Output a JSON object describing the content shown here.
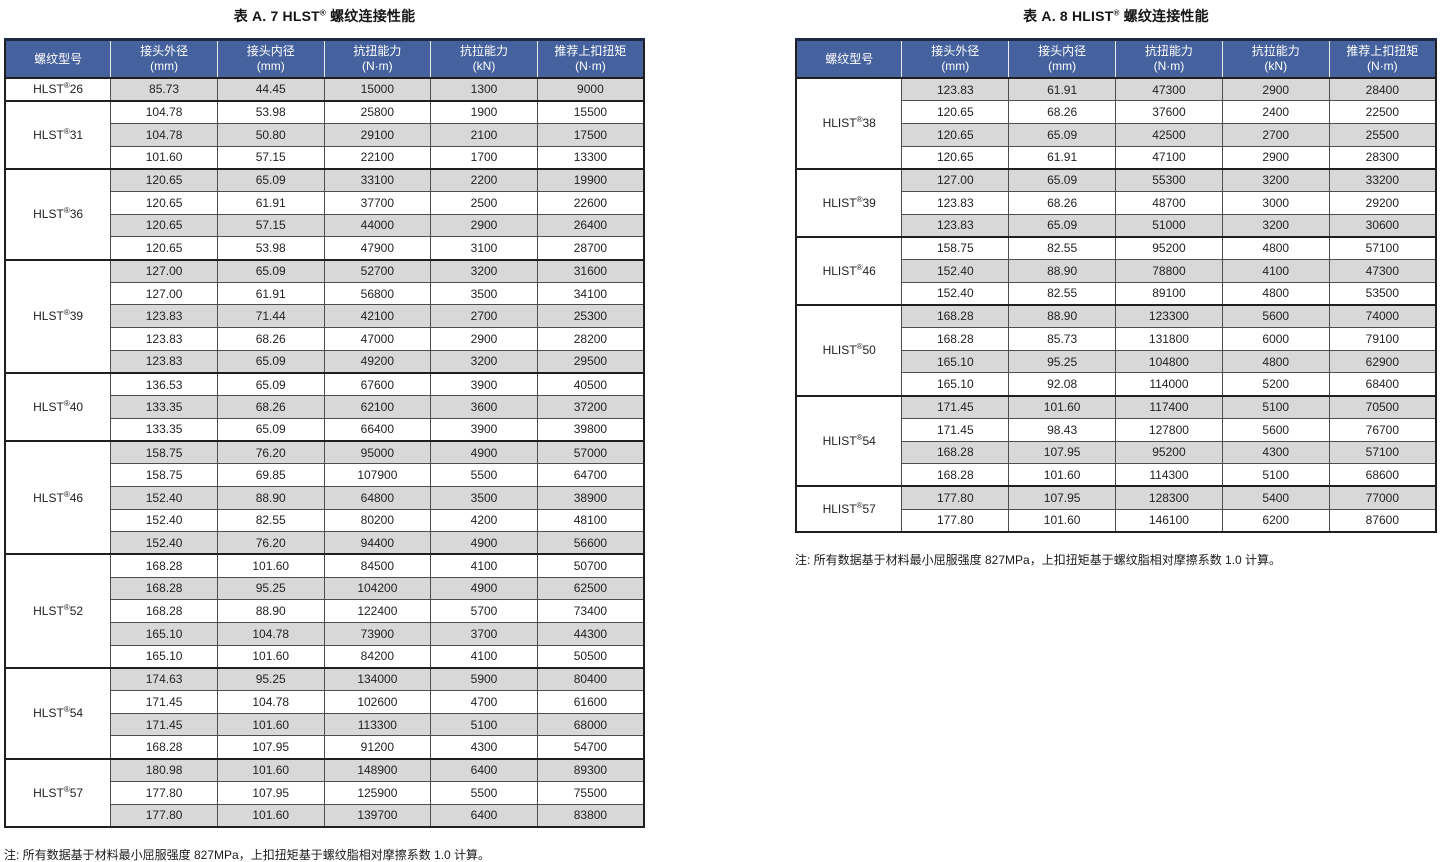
{
  "colors": {
    "header_bg": "#45619e",
    "header_border": "#1d2945",
    "header_separator": "#e9ecf4",
    "header_text": "#ffffff",
    "row_alt_bg": "#d8d8d8",
    "row_bg": "#ffffff",
    "grid_line": "#4d4d4d",
    "heavy_line": "#1f1f1f",
    "text": "#1f1f1f"
  },
  "tables": [
    {
      "id": "hlst",
      "title": "表 A. 7 HLST® 螺纹连接性能",
      "note": "注: 所有数据基于材料最小屈服强度 827MPa，上扣扭矩基于螺纹脂相对摩擦系数 1.0 计算。",
      "columns": [
        {
          "key": "model",
          "label": "螺纹型号",
          "unit": ""
        },
        {
          "key": "outer-diameter",
          "label": "接头外径",
          "unit": "(mm)"
        },
        {
          "key": "inner-diameter",
          "label": "接头内径",
          "unit": "(mm)"
        },
        {
          "key": "torsion-capacity",
          "label": "抗扭能力",
          "unit": "(N·m)"
        },
        {
          "key": "tension-capacity",
          "label": "抗拉能力",
          "unit": "(kN)"
        },
        {
          "key": "makeup-torque",
          "label": "推荐上扣扭矩",
          "unit": "(N·m)"
        }
      ],
      "groups": [
        {
          "model": "HLST®26",
          "rows": [
            [
              "85.73",
              "44.45",
              "15000",
              "1300",
              "9000"
            ]
          ]
        },
        {
          "model": "HLST®31",
          "rows": [
            [
              "104.78",
              "53.98",
              "25800",
              "1900",
              "15500"
            ],
            [
              "104.78",
              "50.80",
              "29100",
              "2100",
              "17500"
            ],
            [
              "101.60",
              "57.15",
              "22100",
              "1700",
              "13300"
            ]
          ]
        },
        {
          "model": "HLST®36",
          "rows": [
            [
              "120.65",
              "65.09",
              "33100",
              "2200",
              "19900"
            ],
            [
              "120.65",
              "61.91",
              "37700",
              "2500",
              "22600"
            ],
            [
              "120.65",
              "57.15",
              "44000",
              "2900",
              "26400"
            ],
            [
              "120.65",
              "53.98",
              "47900",
              "3100",
              "28700"
            ]
          ]
        },
        {
          "model": "HLST®39",
          "rows": [
            [
              "127.00",
              "65.09",
              "52700",
              "3200",
              "31600"
            ],
            [
              "127.00",
              "61.91",
              "56800",
              "3500",
              "34100"
            ],
            [
              "123.83",
              "71.44",
              "42100",
              "2700",
              "25300"
            ],
            [
              "123.83",
              "68.26",
              "47000",
              "2900",
              "28200"
            ],
            [
              "123.83",
              "65.09",
              "49200",
              "3200",
              "29500"
            ]
          ]
        },
        {
          "model": "HLST®40",
          "rows": [
            [
              "136.53",
              "65.09",
              "67600",
              "3900",
              "40500"
            ],
            [
              "133.35",
              "68.26",
              "62100",
              "3600",
              "37200"
            ],
            [
              "133.35",
              "65.09",
              "66400",
              "3900",
              "39800"
            ]
          ]
        },
        {
          "model": "HLST®46",
          "rows": [
            [
              "158.75",
              "76.20",
              "95000",
              "4900",
              "57000"
            ],
            [
              "158.75",
              "69.85",
              "107900",
              "5500",
              "64700"
            ],
            [
              "152.40",
              "88.90",
              "64800",
              "3500",
              "38900"
            ],
            [
              "152.40",
              "82.55",
              "80200",
              "4200",
              "48100"
            ],
            [
              "152.40",
              "76.20",
              "94400",
              "4900",
              "56600"
            ]
          ]
        },
        {
          "model": "HLST®52",
          "rows": [
            [
              "168.28",
              "101.60",
              "84500",
              "4100",
              "50700"
            ],
            [
              "168.28",
              "95.25",
              "104200",
              "4900",
              "62500"
            ],
            [
              "168.28",
              "88.90",
              "122400",
              "5700",
              "73400"
            ],
            [
              "165.10",
              "104.78",
              "73900",
              "3700",
              "44300"
            ],
            [
              "165.10",
              "101.60",
              "84200",
              "4100",
              "50500"
            ]
          ]
        },
        {
          "model": "HLST®54",
          "rows": [
            [
              "174.63",
              "95.25",
              "134000",
              "5900",
              "80400"
            ],
            [
              "171.45",
              "104.78",
              "102600",
              "4700",
              "61600"
            ],
            [
              "171.45",
              "101.60",
              "113300",
              "5100",
              "68000"
            ],
            [
              "168.28",
              "107.95",
              "91200",
              "4300",
              "54700"
            ]
          ]
        },
        {
          "model": "HLST®57",
          "rows": [
            [
              "180.98",
              "101.60",
              "148900",
              "6400",
              "89300"
            ],
            [
              "177.80",
              "107.95",
              "125900",
              "5500",
              "75500"
            ],
            [
              "177.80",
              "101.60",
              "139700",
              "6400",
              "83800"
            ]
          ]
        }
      ]
    },
    {
      "id": "hlist",
      "title": "表 A. 8 HLIST® 螺纹连接性能",
      "note": "注: 所有数据基于材料最小屈服强度 827MPa，上扣扭矩基于螺纹脂相对摩擦系数 1.0 计算。",
      "columns": [
        {
          "key": "model",
          "label": "螺纹型号",
          "unit": ""
        },
        {
          "key": "outer-diameter",
          "label": "接头外径",
          "unit": "(mm)"
        },
        {
          "key": "inner-diameter",
          "label": "接头内径",
          "unit": "(mm)"
        },
        {
          "key": "torsion-capacity",
          "label": "抗扭能力",
          "unit": "(N·m)"
        },
        {
          "key": "tension-capacity",
          "label": "抗拉能力",
          "unit": "(kN)"
        },
        {
          "key": "makeup-torque",
          "label": "推荐上扣扭矩",
          "unit": "(N·m)"
        }
      ],
      "groups": [
        {
          "model": "HLIST®38",
          "rows": [
            [
              "123.83",
              "61.91",
              "47300",
              "2900",
              "28400"
            ],
            [
              "120.65",
              "68.26",
              "37600",
              "2400",
              "22500"
            ],
            [
              "120.65",
              "65.09",
              "42500",
              "2700",
              "25500"
            ],
            [
              "120.65",
              "61.91",
              "47100",
              "2900",
              "28300"
            ]
          ]
        },
        {
          "model": "HLIST®39",
          "rows": [
            [
              "127.00",
              "65.09",
              "55300",
              "3200",
              "33200"
            ],
            [
              "123.83",
              "68.26",
              "48700",
              "3000",
              "29200"
            ],
            [
              "123.83",
              "65.09",
              "51000",
              "3200",
              "30600"
            ]
          ]
        },
        {
          "model": "HLIST®46",
          "rows": [
            [
              "158.75",
              "82.55",
              "95200",
              "4800",
              "57100"
            ],
            [
              "152.40",
              "88.90",
              "78800",
              "4100",
              "47300"
            ],
            [
              "152.40",
              "82.55",
              "89100",
              "4800",
              "53500"
            ]
          ]
        },
        {
          "model": "HLIST®50",
          "rows": [
            [
              "168.28",
              "88.90",
              "123300",
              "5600",
              "74000"
            ],
            [
              "168.28",
              "85.73",
              "131800",
              "6000",
              "79100"
            ],
            [
              "165.10",
              "95.25",
              "104800",
              "4800",
              "62900"
            ],
            [
              "165.10",
              "92.08",
              "114000",
              "5200",
              "68400"
            ]
          ]
        },
        {
          "model": "HLIST®54",
          "rows": [
            [
              "171.45",
              "101.60",
              "117400",
              "5100",
              "70500"
            ],
            [
              "171.45",
              "98.43",
              "127800",
              "5600",
              "76700"
            ],
            [
              "168.28",
              "107.95",
              "95200",
              "4300",
              "57100"
            ],
            [
              "168.28",
              "101.60",
              "114300",
              "5100",
              "68600"
            ]
          ]
        },
        {
          "model": "HLIST®57",
          "rows": [
            [
              "177.80",
              "107.95",
              "128300",
              "5400",
              "77000"
            ],
            [
              "177.80",
              "101.60",
              "146100",
              "6200",
              "87600"
            ]
          ]
        }
      ]
    }
  ]
}
